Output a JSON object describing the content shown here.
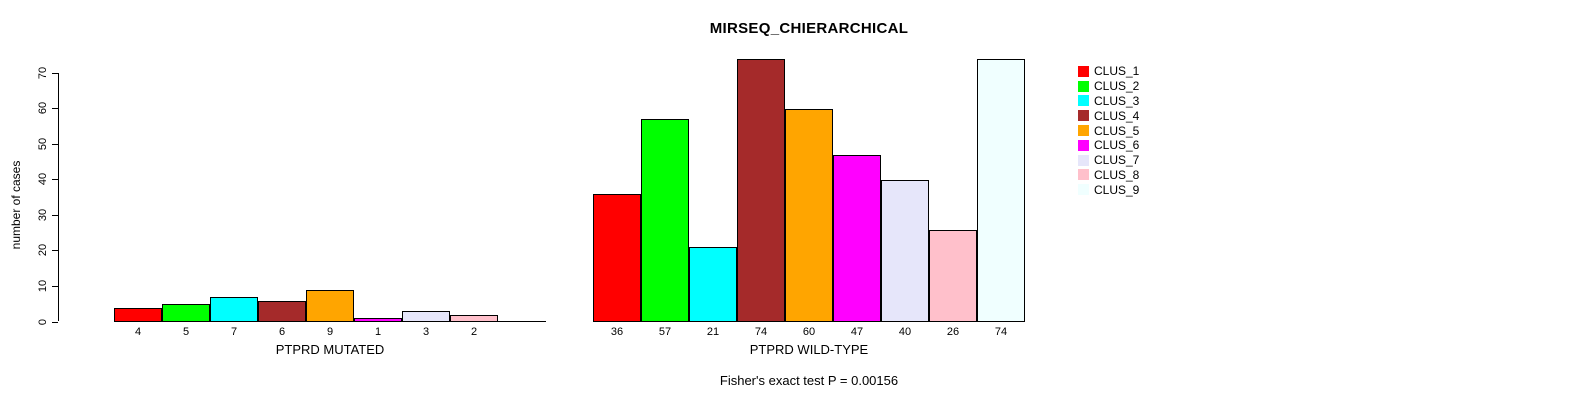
{
  "chart_data": {
    "type": "bar",
    "title": "MIRSEQ_CHIERARCHICAL",
    "ylabel": "number of cases",
    "ylim": [
      0,
      74
    ],
    "yticks": [
      0,
      10,
      20,
      30,
      40,
      50,
      60,
      70
    ],
    "grid": false,
    "legend_position": "right",
    "annotation": "Fisher's exact test P = 0.00156",
    "legend": [
      "CLUS_1",
      "CLUS_2",
      "CLUS_3",
      "CLUS_4",
      "CLUS_5",
      "CLUS_6",
      "CLUS_7",
      "CLUS_8",
      "CLUS_9"
    ],
    "series_colors": [
      "#FF0000",
      "#00FF00",
      "#00FFFF",
      "#A52A2A",
      "#FFA500",
      "#FF00FF",
      "#E6E6FA",
      "#FFC0CB",
      "#F0FFFF"
    ],
    "groups": [
      {
        "xlabel": "PTPRD MUTATED",
        "values": [
          4,
          5,
          7,
          6,
          9,
          1,
          3,
          2,
          0
        ],
        "bar_labels": [
          "4",
          "5",
          "7",
          "6",
          "9",
          "1",
          "3",
          "2",
          ""
        ]
      },
      {
        "xlabel": "PTPRD WILD-TYPE",
        "values": [
          36,
          57,
          21,
          74,
          60,
          47,
          40,
          26,
          74
        ],
        "bar_labels": [
          "36",
          "57",
          "21",
          "74",
          "60",
          "47",
          "40",
          "26",
          "74"
        ]
      }
    ],
    "background": "#FFFFFF",
    "text_color": "#000000"
  }
}
